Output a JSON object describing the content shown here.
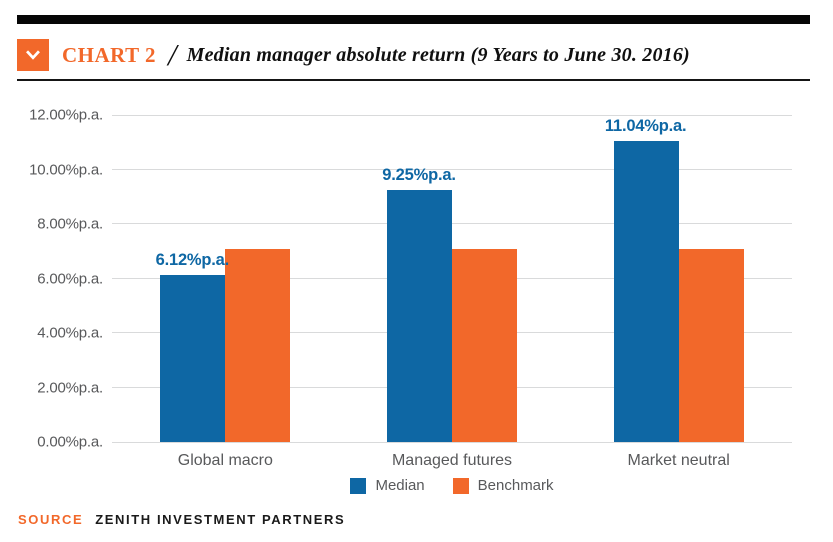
{
  "header": {
    "chart_label": "CHART 2",
    "separator": "/",
    "title": "Median manager absolute return (9 Years to June 30. 2016)"
  },
  "source": {
    "label": "SOURCE",
    "text": "ZENITH INVESTMENT PARTNERS"
  },
  "colors": {
    "accent_orange": "#F2682A",
    "median_blue": "#0E67A4",
    "axis_text": "#58595B",
    "gridline": "#D9DADB"
  },
  "chart_data": {
    "type": "bar",
    "title": "Median manager absolute return (9 Years to June 30. 2016)",
    "categories": [
      "Global macro",
      "Managed futures",
      "Market neutral"
    ],
    "series": [
      {
        "name": "Median",
        "color": "#0E67A4",
        "values": [
          6.12,
          9.25,
          11.04
        ],
        "data_labels": [
          "6.12%p.a.",
          "9.25%p.a.",
          "11.04%p.a."
        ]
      },
      {
        "name": "Benchmark",
        "color": "#F2682A",
        "values": [
          7.1,
          7.1,
          7.1
        ],
        "data_labels": []
      }
    ],
    "xlabel": "",
    "ylabel": "",
    "ylim": [
      0,
      12
    ],
    "y_ticks": [
      {
        "value": 0,
        "label": "0.00%p.a."
      },
      {
        "value": 2,
        "label": "2.00%p.a."
      },
      {
        "value": 4,
        "label": "4.00%p.a."
      },
      {
        "value": 6,
        "label": "6.00%p.a."
      },
      {
        "value": 8,
        "label": "8.00%p.a."
      },
      {
        "value": 10,
        "label": "10.00%p.a."
      },
      {
        "value": 12,
        "label": "12.00%p.a."
      }
    ],
    "grid": true,
    "legend_position": "bottom"
  }
}
